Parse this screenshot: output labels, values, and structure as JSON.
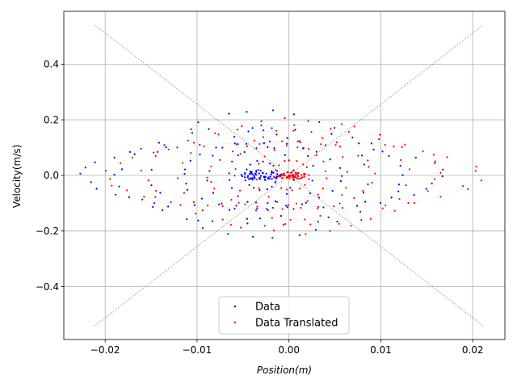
{
  "chart_data": {
    "type": "scatter",
    "title": "",
    "xlabel": "Position(m)",
    "ylabel": "Velocity(m/s)",
    "xlim": [
      -0.0245,
      0.0235
    ],
    "ylim": [
      -0.59,
      0.59
    ],
    "xticks": [
      -0.02,
      -0.01,
      0.0,
      0.01,
      0.02
    ],
    "xtick_labels": [
      "−0.02",
      "−0.01",
      "0.00",
      "0.01",
      "0.02"
    ],
    "yticks": [
      -0.4,
      -0.2,
      0.0,
      0.2,
      0.4
    ],
    "ytick_labels": [
      "−0.4",
      "−0.2",
      "0.0",
      "0.2",
      "0.4"
    ],
    "grid": true,
    "legend_position": "lower-center",
    "reference_lines": [
      {
        "x": [
          -0.0211,
          0.0211
        ],
        "y": [
          0.54,
          -0.54
        ],
        "style": "dotted",
        "color": "#444444"
      },
      {
        "x": [
          -0.0211,
          0.0211
        ],
        "y": [
          -0.54,
          0.54
        ],
        "style": "dotted",
        "color": "#444444"
      }
    ],
    "series": [
      {
        "name": "Data",
        "color": "#0000ff",
        "center_x": -0.003,
        "rings": [
          {
            "rx": 0.0197,
            "ry": 0.118,
            "n": 32
          },
          {
            "rx": 0.0156,
            "ry": 0.176,
            "n": 30
          },
          {
            "rx": 0.0118,
            "ry": 0.228,
            "n": 28
          },
          {
            "rx": 0.0086,
            "ry": 0.118,
            "n": 26
          },
          {
            "rx": 0.0058,
            "ry": 0.158,
            "n": 22
          },
          {
            "rx": 0.0036,
            "ry": 0.102,
            "n": 20
          },
          {
            "rx": 0.0018,
            "ry": 0.052,
            "n": 16
          }
        ],
        "cluster": {
          "rx": 0.0022,
          "ry": 0.018,
          "n": 60
        }
      },
      {
        "name": "Data Translated",
        "color": "#ff0000",
        "center_x": 0.0003,
        "rings": [
          {
            "rx": 0.0204,
            "ry": 0.122,
            "n": 32
          },
          {
            "rx": 0.016,
            "ry": 0.178,
            "n": 30
          },
          {
            "rx": 0.0125,
            "ry": 0.205,
            "n": 28
          },
          {
            "rx": 0.009,
            "ry": 0.122,
            "n": 26
          },
          {
            "rx": 0.0062,
            "ry": 0.165,
            "n": 22
          },
          {
            "rx": 0.0038,
            "ry": 0.105,
            "n": 20
          },
          {
            "rx": 0.0019,
            "ry": 0.055,
            "n": 16
          }
        ],
        "cluster": {
          "rx": 0.0016,
          "ry": 0.014,
          "n": 60
        }
      }
    ]
  }
}
